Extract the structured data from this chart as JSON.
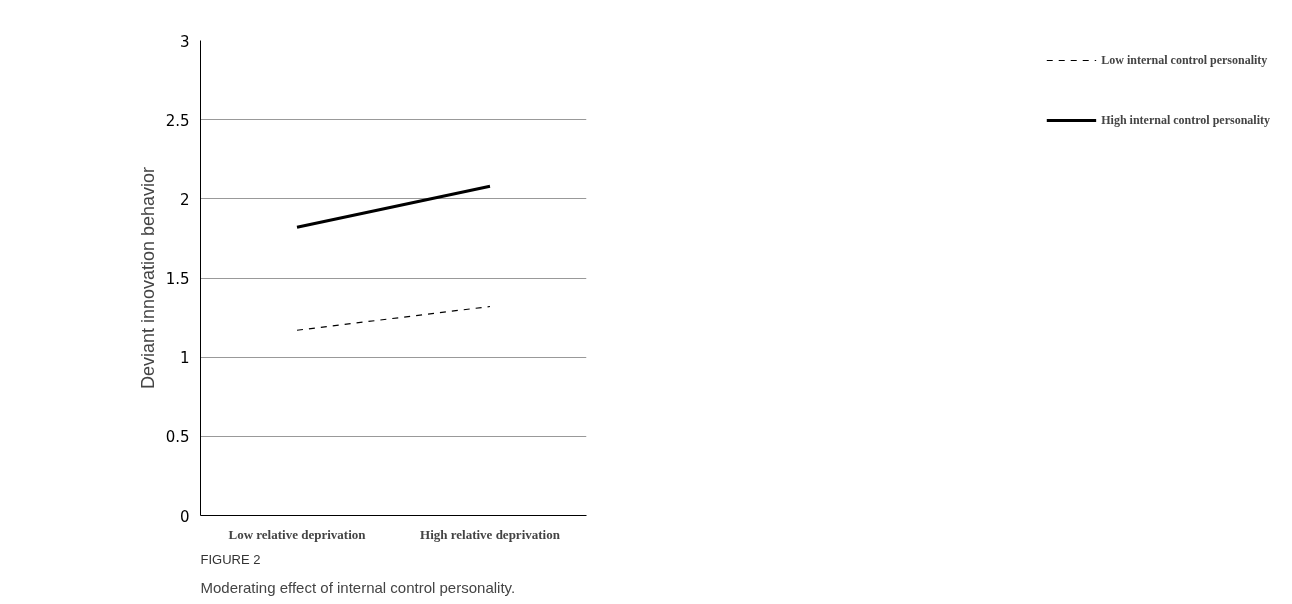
{
  "chart_data": {
    "type": "line",
    "ylabel": "Deviant innovation behavior",
    "categories": [
      "Low relative deprivation",
      "High relative deprivation"
    ],
    "series": [
      {
        "name": "Low internal control personality",
        "color": "#000000",
        "line_style": "dashed",
        "values": [
          1.17,
          1.32
        ]
      },
      {
        "name": "High internal control personality",
        "color": "#000000",
        "line_style": "solid",
        "values": [
          1.82,
          2.08
        ]
      }
    ],
    "ylim": [
      0,
      3
    ],
    "yticks": [
      0,
      0.5,
      1,
      1.5,
      2,
      2.5,
      3
    ],
    "grid": "y",
    "legend": "right",
    "marker": "none",
    "annotations": [
      "FIGURE 2",
      "Moderating effect of internal control personality."
    ]
  }
}
